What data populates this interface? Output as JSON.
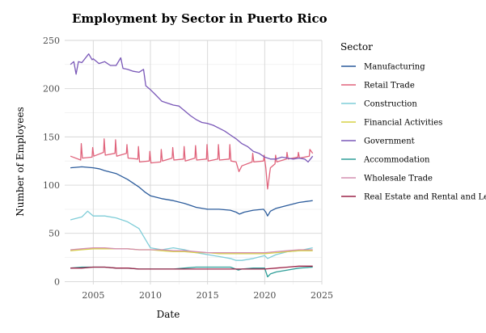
{
  "chart_data": {
    "type": "line",
    "title": "Employment by Sector in Puerto Rico",
    "xlabel": "Date",
    "ylabel": "Number of Employees",
    "xlim": [
      2002.5,
      2025.0
    ],
    "ylim": [
      -3,
      250
    ],
    "x_ticks": [
      2005,
      2010,
      2015,
      2020,
      2025
    ],
    "y_ticks": [
      0,
      50,
      100,
      150,
      200,
      250
    ],
    "legend_title": "Sector",
    "grid": true,
    "series": [
      {
        "name": "Manufacturing",
        "color": "#2C5C9C",
        "points": [
          [
            2003.0,
            118
          ],
          [
            2004.0,
            119
          ],
          [
            2005.0,
            118
          ],
          [
            2005.5,
            117
          ],
          [
            2006.0,
            115
          ],
          [
            2007.0,
            112
          ],
          [
            2008.0,
            106
          ],
          [
            2009.0,
            98
          ],
          [
            2009.5,
            93
          ],
          [
            2010.0,
            89
          ],
          [
            2011.0,
            86
          ],
          [
            2012.0,
            84
          ],
          [
            2013.0,
            81
          ],
          [
            2013.5,
            79
          ],
          [
            2014.0,
            77
          ],
          [
            2015.0,
            75
          ],
          [
            2016.0,
            75
          ],
          [
            2017.0,
            74
          ],
          [
            2017.5,
            72
          ],
          [
            2017.8,
            70
          ],
          [
            2018.2,
            72
          ],
          [
            2019.0,
            74
          ],
          [
            2019.9,
            75
          ],
          [
            2020.1,
            72
          ],
          [
            2020.25,
            68
          ],
          [
            2020.5,
            73
          ],
          [
            2021.0,
            76
          ],
          [
            2022.0,
            79
          ],
          [
            2023.0,
            82
          ],
          [
            2024.2,
            84
          ]
        ]
      },
      {
        "name": "Retail Trade",
        "color": "#E0647C",
        "points": [
          [
            2003.0,
            130
          ],
          [
            2003.9,
            126
          ],
          [
            2003.95,
            143
          ],
          [
            2004.05,
            128
          ],
          [
            2004.9,
            129
          ],
          [
            2004.95,
            139
          ],
          [
            2005.05,
            130
          ],
          [
            2005.9,
            134
          ],
          [
            2005.95,
            148
          ],
          [
            2006.05,
            131
          ],
          [
            2006.9,
            133
          ],
          [
            2006.95,
            147
          ],
          [
            2007.05,
            130
          ],
          [
            2007.9,
            133
          ],
          [
            2007.95,
            142
          ],
          [
            2008.05,
            128
          ],
          [
            2008.9,
            127
          ],
          [
            2008.95,
            140
          ],
          [
            2009.05,
            124
          ],
          [
            2009.9,
            125
          ],
          [
            2009.95,
            135
          ],
          [
            2010.05,
            123
          ],
          [
            2010.9,
            124
          ],
          [
            2010.95,
            137
          ],
          [
            2011.05,
            125
          ],
          [
            2011.9,
            128
          ],
          [
            2011.95,
            139
          ],
          [
            2012.05,
            126
          ],
          [
            2012.9,
            127
          ],
          [
            2012.95,
            140
          ],
          [
            2013.05,
            125
          ],
          [
            2013.9,
            128
          ],
          [
            2013.95,
            141
          ],
          [
            2014.05,
            126
          ],
          [
            2014.9,
            127
          ],
          [
            2014.95,
            142
          ],
          [
            2015.05,
            125
          ],
          [
            2015.9,
            127
          ],
          [
            2015.95,
            142
          ],
          [
            2016.05,
            126
          ],
          [
            2016.9,
            127
          ],
          [
            2016.95,
            142
          ],
          [
            2017.05,
            125
          ],
          [
            2017.5,
            124
          ],
          [
            2017.75,
            114
          ],
          [
            2018.0,
            120
          ],
          [
            2018.9,
            124
          ],
          [
            2018.95,
            133
          ],
          [
            2019.05,
            124
          ],
          [
            2019.9,
            125
          ],
          [
            2019.95,
            131
          ],
          [
            2020.1,
            118
          ],
          [
            2020.25,
            96
          ],
          [
            2020.5,
            118
          ],
          [
            2020.9,
            122
          ],
          [
            2020.95,
            131
          ],
          [
            2021.05,
            124
          ],
          [
            2021.9,
            127
          ],
          [
            2021.95,
            134
          ],
          [
            2022.05,
            127
          ],
          [
            2022.9,
            129
          ],
          [
            2022.95,
            134
          ],
          [
            2023.05,
            128
          ],
          [
            2023.9,
            130
          ],
          [
            2023.95,
            137
          ],
          [
            2024.2,
            133
          ]
        ]
      },
      {
        "name": "Construction",
        "color": "#7FCDD8",
        "points": [
          [
            2003.0,
            64
          ],
          [
            2004.0,
            67
          ],
          [
            2004.5,
            73
          ],
          [
            2005.0,
            68
          ],
          [
            2006.0,
            68
          ],
          [
            2007.0,
            66
          ],
          [
            2008.0,
            62
          ],
          [
            2009.0,
            55
          ],
          [
            2009.5,
            45
          ],
          [
            2010.0,
            35
          ],
          [
            2011.0,
            33
          ],
          [
            2012.0,
            35
          ],
          [
            2013.0,
            33
          ],
          [
            2014.0,
            30
          ],
          [
            2015.0,
            28
          ],
          [
            2016.0,
            26
          ],
          [
            2017.0,
            24
          ],
          [
            2017.5,
            22
          ],
          [
            2018.0,
            22
          ],
          [
            2019.0,
            24
          ],
          [
            2020.0,
            27
          ],
          [
            2020.25,
            24
          ],
          [
            2021.0,
            28
          ],
          [
            2022.0,
            31
          ],
          [
            2023.0,
            32
          ],
          [
            2024.2,
            35
          ]
        ]
      },
      {
        "name": "Financial Activities",
        "color": "#D7D247",
        "points": [
          [
            2003.0,
            32
          ],
          [
            2004.0,
            33
          ],
          [
            2005.0,
            34
          ],
          [
            2006.0,
            34
          ],
          [
            2007.0,
            34
          ],
          [
            2008.0,
            34
          ],
          [
            2009.0,
            33
          ],
          [
            2010.0,
            33
          ],
          [
            2011.0,
            32
          ],
          [
            2012.0,
            31
          ],
          [
            2013.0,
            31
          ],
          [
            2014.0,
            30
          ],
          [
            2015.0,
            30
          ],
          [
            2016.0,
            29
          ],
          [
            2017.0,
            29
          ],
          [
            2018.0,
            29
          ],
          [
            2019.0,
            29
          ],
          [
            2020.0,
            29
          ],
          [
            2021.0,
            30
          ],
          [
            2022.0,
            31
          ],
          [
            2023.0,
            32
          ],
          [
            2024.2,
            32
          ]
        ]
      },
      {
        "name": "Government",
        "color": "#7A58B8",
        "points": [
          [
            2003.0,
            225
          ],
          [
            2003.3,
            228
          ],
          [
            2003.5,
            215
          ],
          [
            2003.7,
            228
          ],
          [
            2004.0,
            227
          ],
          [
            2004.6,
            236
          ],
          [
            2004.9,
            230
          ],
          [
            2005.0,
            231
          ],
          [
            2005.5,
            226
          ],
          [
            2006.0,
            228
          ],
          [
            2006.5,
            224
          ],
          [
            2007.0,
            224
          ],
          [
            2007.4,
            232
          ],
          [
            2007.6,
            221
          ],
          [
            2008.0,
            220
          ],
          [
            2008.5,
            218
          ],
          [
            2009.0,
            217
          ],
          [
            2009.4,
            220
          ],
          [
            2009.6,
            203
          ],
          [
            2010.0,
            199
          ],
          [
            2010.5,
            193
          ],
          [
            2011.0,
            187
          ],
          [
            2011.5,
            185
          ],
          [
            2012.0,
            183
          ],
          [
            2012.5,
            182
          ],
          [
            2013.0,
            177
          ],
          [
            2013.5,
            172
          ],
          [
            2014.0,
            168
          ],
          [
            2014.5,
            165
          ],
          [
            2015.0,
            164
          ],
          [
            2015.5,
            162
          ],
          [
            2016.0,
            159
          ],
          [
            2016.5,
            156
          ],
          [
            2017.0,
            152
          ],
          [
            2017.5,
            148
          ],
          [
            2018.0,
            143
          ],
          [
            2018.5,
            140
          ],
          [
            2019.0,
            135
          ],
          [
            2019.5,
            133
          ],
          [
            2020.0,
            129
          ],
          [
            2020.5,
            127
          ],
          [
            2021.0,
            127
          ],
          [
            2021.5,
            129
          ],
          [
            2022.0,
            128
          ],
          [
            2022.5,
            127
          ],
          [
            2023.0,
            128
          ],
          [
            2023.5,
            127
          ],
          [
            2023.8,
            124
          ],
          [
            2024.0,
            127
          ],
          [
            2024.2,
            130
          ]
        ]
      },
      {
        "name": "Accommodation",
        "color": "#2E9E98",
        "points": [
          [
            2003.0,
            14
          ],
          [
            2004.0,
            15
          ],
          [
            2005.0,
            15
          ],
          [
            2006.0,
            15
          ],
          [
            2007.0,
            14
          ],
          [
            2008.0,
            14
          ],
          [
            2009.0,
            13
          ],
          [
            2010.0,
            13
          ],
          [
            2011.0,
            13
          ],
          [
            2012.0,
            13
          ],
          [
            2013.0,
            14
          ],
          [
            2014.0,
            15
          ],
          [
            2015.0,
            15
          ],
          [
            2016.0,
            15
          ],
          [
            2017.0,
            15
          ],
          [
            2017.7,
            12
          ],
          [
            2018.0,
            13
          ],
          [
            2019.0,
            14
          ],
          [
            2020.0,
            14
          ],
          [
            2020.25,
            5
          ],
          [
            2020.5,
            8
          ],
          [
            2021.0,
            10
          ],
          [
            2022.0,
            12
          ],
          [
            2023.0,
            14
          ],
          [
            2024.2,
            15
          ]
        ]
      },
      {
        "name": "Wholesale Trade",
        "color": "#D48FB0",
        "points": [
          [
            2003.0,
            33
          ],
          [
            2004.0,
            34
          ],
          [
            2005.0,
            35
          ],
          [
            2006.0,
            35
          ],
          [
            2007.0,
            34
          ],
          [
            2008.0,
            34
          ],
          [
            2009.0,
            33
          ],
          [
            2010.0,
            33
          ],
          [
            2011.0,
            33
          ],
          [
            2012.0,
            32
          ],
          [
            2013.0,
            32
          ],
          [
            2014.0,
            31
          ],
          [
            2015.0,
            30
          ],
          [
            2016.0,
            30
          ],
          [
            2017.0,
            30
          ],
          [
            2018.0,
            30
          ],
          [
            2019.0,
            30
          ],
          [
            2020.0,
            30
          ],
          [
            2021.0,
            31
          ],
          [
            2022.0,
            32
          ],
          [
            2023.0,
            33
          ],
          [
            2024.2,
            33
          ]
        ]
      },
      {
        "name": "Real Estate and Rental and Leasing",
        "color": "#9C2448",
        "points": [
          [
            2003.0,
            14
          ],
          [
            2004.0,
            14
          ],
          [
            2005.0,
            15
          ],
          [
            2006.0,
            15
          ],
          [
            2007.0,
            14
          ],
          [
            2008.0,
            14
          ],
          [
            2009.0,
            13
          ],
          [
            2010.0,
            13
          ],
          [
            2011.0,
            13
          ],
          [
            2012.0,
            13
          ],
          [
            2013.0,
            13
          ],
          [
            2014.0,
            13
          ],
          [
            2015.0,
            13
          ],
          [
            2016.0,
            13
          ],
          [
            2017.0,
            13
          ],
          [
            2018.0,
            13
          ],
          [
            2019.0,
            13
          ],
          [
            2020.0,
            13
          ],
          [
            2021.0,
            14
          ],
          [
            2022.0,
            15
          ],
          [
            2023.0,
            16
          ],
          [
            2024.2,
            16
          ]
        ]
      }
    ]
  }
}
